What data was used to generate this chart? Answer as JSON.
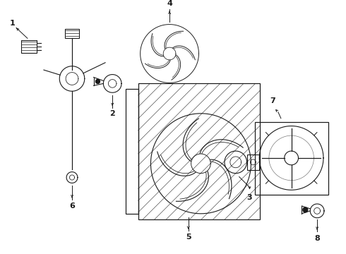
{
  "bg_color": "#ffffff",
  "lc": "#1a1a1a",
  "lw": 0.8,
  "fig_w": 4.9,
  "fig_h": 3.6,
  "dpi": 100,
  "xlim": [
    0,
    490
  ],
  "ylim": [
    0,
    360
  ]
}
